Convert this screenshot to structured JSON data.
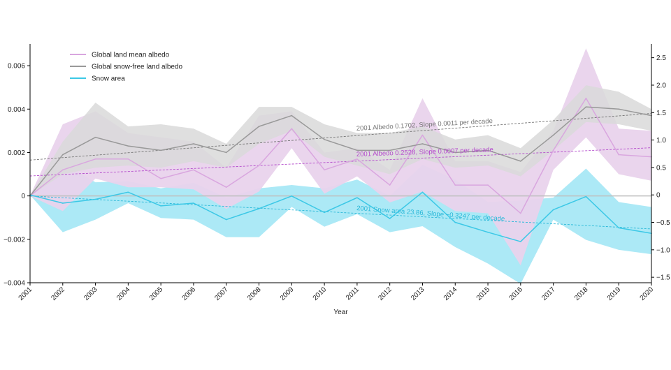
{
  "chart_data": {
    "type": "line",
    "xlabel": "Year",
    "x": [
      2001,
      2002,
      2003,
      2004,
      2005,
      2006,
      2007,
      2008,
      2009,
      2010,
      2011,
      2012,
      2013,
      2014,
      2015,
      2016,
      2017,
      2018,
      2019,
      2020
    ],
    "x_tick_labels": [
      "2001",
      "2002",
      "2003",
      "2004",
      "2005",
      "2006",
      "2007",
      "2008",
      "2009",
      "2010",
      "2011",
      "2012",
      "2013",
      "2014",
      "2015",
      "2016",
      "2017",
      "2018",
      "2019",
      "2020"
    ],
    "ylim_left": [
      -0.004,
      0.007
    ],
    "y_left_ticks": [
      -0.004,
      -0.002,
      0,
      0.002,
      0.004,
      0.006
    ],
    "y_left_tick_labels": [
      "−0.004",
      "−0.002",
      "0",
      "0.002",
      "0.004",
      "0.006"
    ],
    "ylim_right": [
      -1.6,
      2.75
    ],
    "y_right_ticks": [
      -1.5,
      -1.0,
      -0.5,
      0,
      0.5,
      1.0,
      1.5,
      2.0,
      2.5
    ],
    "y_right_tick_labels": [
      "−1.5",
      "−1.0",
      "−0.5",
      "0",
      "0.5",
      "1.0",
      "1.5",
      "2.0",
      "2.5"
    ],
    "legend_placement": "top-left",
    "grid": false,
    "series": [
      {
        "name": "Global land mean albedo",
        "color": "#d9a6df",
        "band_color": "#e9d3ec",
        "axis": "left",
        "values": [
          0,
          0.0012,
          0.0017,
          0.0017,
          0.0008,
          0.0012,
          0.0004,
          0.0014,
          0.0031,
          0.0012,
          0.0017,
          0.0005,
          0.0028,
          0.0005,
          0.0005,
          -0.0008,
          0.0021,
          0.0045,
          0.0019,
          0.0018
        ],
        "lower": [
          0,
          -0.0007,
          0.0008,
          0.0004,
          0.0004,
          0.0003,
          -0.0006,
          0.0002,
          0.0022,
          0.0001,
          0.0009,
          -0.0003,
          0.0002,
          -0.0007,
          -0.0008,
          -0.0032,
          0.0012,
          0.0027,
          0.001,
          0.0007
        ],
        "upper": [
          0,
          0.0033,
          0.0039,
          0.0029,
          0.0027,
          0.0025,
          0.0013,
          0.0037,
          0.0039,
          0.002,
          0.0022,
          0.0012,
          0.0045,
          0.0016,
          0.0016,
          0.0011,
          0.003,
          0.0068,
          0.0031,
          0.003
        ]
      },
      {
        "name": "Global snow-free land albedo",
        "color": "#999999",
        "band_color": "#d9d9d9",
        "axis": "left",
        "values": [
          0,
          0.0019,
          0.0027,
          0.0023,
          0.0021,
          0.0024,
          0.002,
          0.0032,
          0.0037,
          0.0026,
          0.0021,
          0.0021,
          0.0024,
          0.002,
          0.0021,
          0.0016,
          0.0028,
          0.0041,
          0.004,
          0.0037
        ],
        "lower": [
          0,
          0.001,
          0.0013,
          0.0014,
          0.0013,
          0.0016,
          0.0013,
          0.0024,
          0.003,
          0.0018,
          0.0014,
          0.001,
          0.0017,
          0.0013,
          0.0014,
          0.0009,
          0.0021,
          0.0034,
          0.0033,
          0.003
        ],
        "upper": [
          0,
          0.0025,
          0.0043,
          0.0032,
          0.0033,
          0.0031,
          0.0024,
          0.0041,
          0.0041,
          0.0033,
          0.0029,
          0.0029,
          0.0032,
          0.0026,
          0.0028,
          0.0022,
          0.0035,
          0.0051,
          0.0048,
          0.004
        ]
      },
      {
        "name": "Snow area",
        "color": "#3cc8e6",
        "band_color": "#a8e8f6",
        "axis": "right",
        "values": [
          0,
          -0.15,
          -0.08,
          0.05,
          -0.2,
          -0.15,
          -0.45,
          -0.25,
          -0.02,
          -0.32,
          -0.05,
          -0.43,
          0.05,
          -0.5,
          -0.68,
          -0.85,
          -0.27,
          -0.03,
          -0.6,
          -0.7
        ],
        "lower": [
          0,
          -0.68,
          -0.45,
          -0.15,
          -0.42,
          -0.45,
          -0.77,
          -0.77,
          -0.22,
          -0.58,
          -0.35,
          -0.68,
          -0.57,
          -0.95,
          -1.25,
          -1.62,
          -0.45,
          -0.82,
          -1.0,
          -1.08
        ],
        "upper": [
          0,
          0.58,
          0.23,
          0.25,
          0.12,
          0.22,
          -0.05,
          0.12,
          0.18,
          0.12,
          0.28,
          -0.02,
          0.55,
          0.28,
          -0.13,
          -0.1,
          -0.05,
          0.48,
          -0.13,
          -0.22
        ]
      }
    ],
    "trend_lines": [
      {
        "label": "2001 Albedo 0.1702, Slope 0.0011 per decade",
        "color": "#777777",
        "axis": "left",
        "y_start": 0.00165,
        "y_end": 0.0038
      },
      {
        "label": "2001 Albedo 0.2528, Slope 0.0007 per decade",
        "color": "#b44ccc",
        "axis": "left",
        "y_start": 0.00092,
        "y_end": 0.00222
      },
      {
        "label": "2001 Snow area 23.86, Slope −0.3247 per decade",
        "color": "#29b8d8",
        "axis": "right",
        "y_start": -0.02,
        "y_end": -0.62
      }
    ],
    "zero_line_color": "#bfbfbf"
  }
}
